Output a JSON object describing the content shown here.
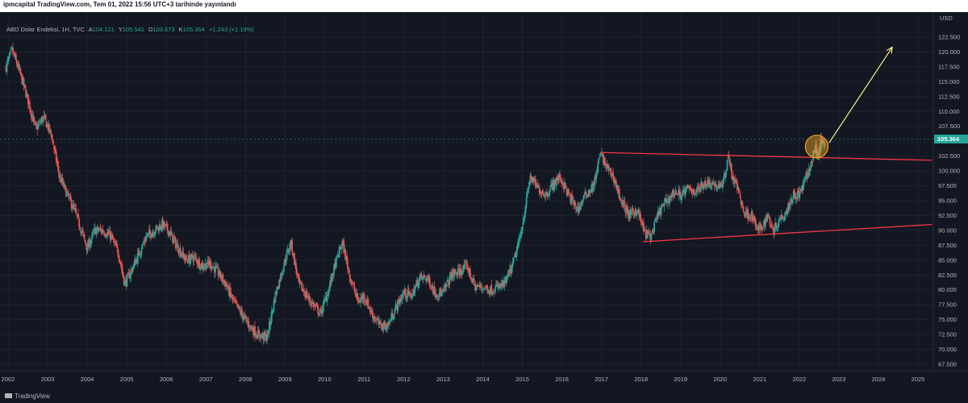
{
  "header": {
    "published_line": "ipmcapital TradingView.com, Tem 01, 2022 15:56 UTC+3 tarihinde yayınlandı"
  },
  "symbol": {
    "name": "ABD Dolar Endeksi, 1H, TVC",
    "o_label": "A",
    "open": "104.121",
    "h_label": "Y",
    "high": "105.541",
    "l_label": "D",
    "low": "103.673",
    "c_label": "K",
    "close": "105.364",
    "change": "+1.243 (+1.19%)"
  },
  "currency": "USD",
  "last_price_label": "105.364",
  "branding": "TradingView",
  "colors": {
    "background": "#131722",
    "up": "#26a69a",
    "down": "#ef5350",
    "trendline": "#f23645",
    "projection_arrow": "#f7f08a",
    "highlight_circle": "#f5a623",
    "last_price_badge": "#26a69a"
  },
  "chart_data": {
    "type": "candlestick",
    "x_axis_labels": [
      "2002",
      "2003",
      "2004",
      "2005",
      "2006",
      "2007",
      "2008",
      "2009",
      "2010",
      "2011",
      "2012",
      "2013",
      "2014",
      "2015",
      "2016",
      "2017",
      "2018",
      "2019",
      "2020",
      "2021",
      "2022",
      "2023",
      "2024",
      "2025"
    ],
    "y_axis_labels": [
      "122.500",
      "120.000",
      "117.500",
      "115.000",
      "112.500",
      "110.000",
      "107.500",
      "105.000",
      "102.500",
      "100.000",
      "97.500",
      "95.000",
      "92.500",
      "90.000",
      "87.500",
      "85.000",
      "82.500",
      "80.000",
      "77.500",
      "75.000",
      "72.500",
      "70.000",
      "67.500"
    ],
    "ylim": [
      66.5,
      124.5
    ],
    "xlim": [
      2001.95,
      2025.35
    ],
    "last_price": 105.364,
    "price_path": [
      [
        2001.95,
        117.5
      ],
      [
        2002.1,
        120.3
      ],
      [
        2002.3,
        116.5
      ],
      [
        2002.5,
        112
      ],
      [
        2002.7,
        107
      ],
      [
        2002.9,
        109
      ],
      [
        2003.1,
        106
      ],
      [
        2003.3,
        99
      ],
      [
        2003.5,
        96
      ],
      [
        2003.7,
        93
      ],
      [
        2003.9,
        89
      ],
      [
        2004.0,
        87
      ],
      [
        2004.2,
        90
      ],
      [
        2004.4,
        90
      ],
      [
        2004.6,
        89
      ],
      [
        2004.8,
        86
      ],
      [
        2004.95,
        81
      ],
      [
        2005.1,
        83
      ],
      [
        2005.3,
        86
      ],
      [
        2005.5,
        89
      ],
      [
        2005.7,
        90
      ],
      [
        2005.9,
        91
      ],
      [
        2006.05,
        90
      ],
      [
        2006.3,
        87
      ],
      [
        2006.5,
        85
      ],
      [
        2006.7,
        85.5
      ],
      [
        2006.9,
        84
      ],
      [
        2007.1,
        84.5
      ],
      [
        2007.3,
        83
      ],
      [
        2007.5,
        81
      ],
      [
        2007.7,
        78
      ],
      [
        2007.9,
        76
      ],
      [
        2008.1,
        74
      ],
      [
        2008.3,
        72.5
      ],
      [
        2008.55,
        72
      ],
      [
        2008.75,
        79
      ],
      [
        2009.0,
        85
      ],
      [
        2009.15,
        88
      ],
      [
        2009.35,
        81
      ],
      [
        2009.6,
        78.5
      ],
      [
        2009.9,
        76
      ],
      [
        2010.1,
        80
      ],
      [
        2010.3,
        85
      ],
      [
        2010.45,
        88
      ],
      [
        2010.65,
        82
      ],
      [
        2010.85,
        78
      ],
      [
        2011.0,
        79
      ],
      [
        2011.2,
        76
      ],
      [
        2011.4,
        74
      ],
      [
        2011.6,
        74
      ],
      [
        2011.8,
        77
      ],
      [
        2012.0,
        79.5
      ],
      [
        2012.2,
        79
      ],
      [
        2012.4,
        82
      ],
      [
        2012.6,
        82
      ],
      [
        2012.8,
        79.5
      ],
      [
        2013.0,
        79.5
      ],
      [
        2013.2,
        82.5
      ],
      [
        2013.4,
        83
      ],
      [
        2013.6,
        84
      ],
      [
        2013.8,
        80.5
      ],
      [
        2014.0,
        80.5
      ],
      [
        2014.2,
        80
      ],
      [
        2014.4,
        80.5
      ],
      [
        2014.55,
        81
      ],
      [
        2014.75,
        84
      ],
      [
        2014.95,
        89
      ],
      [
        2015.1,
        95
      ],
      [
        2015.2,
        99
      ],
      [
        2015.4,
        97
      ],
      [
        2015.6,
        96
      ],
      [
        2015.8,
        98
      ],
      [
        2015.95,
        99
      ],
      [
        2016.2,
        95.5
      ],
      [
        2016.4,
        93.5
      ],
      [
        2016.6,
        96
      ],
      [
        2016.8,
        97.5
      ],
      [
        2016.98,
        103
      ],
      [
        2017.1,
        101
      ],
      [
        2017.3,
        99
      ],
      [
        2017.5,
        95
      ],
      [
        2017.7,
        92.5
      ],
      [
        2017.9,
        93.5
      ],
      [
        2018.1,
        89.5
      ],
      [
        2018.25,
        89
      ],
      [
        2018.45,
        93
      ],
      [
        2018.65,
        95
      ],
      [
        2018.85,
        96.5
      ],
      [
        2019.0,
        96
      ],
      [
        2019.2,
        97
      ],
      [
        2019.4,
        96.5
      ],
      [
        2019.6,
        98
      ],
      [
        2019.8,
        98
      ],
      [
        2020.0,
        97
      ],
      [
        2020.15,
        100
      ],
      [
        2020.2,
        102.9
      ],
      [
        2020.3,
        99
      ],
      [
        2020.45,
        97
      ],
      [
        2020.6,
        93
      ],
      [
        2020.8,
        92.5
      ],
      [
        2020.95,
        90
      ],
      [
        2021.05,
        90.5
      ],
      [
        2021.2,
        92.5
      ],
      [
        2021.35,
        90
      ],
      [
        2021.5,
        92
      ],
      [
        2021.65,
        93
      ],
      [
        2021.85,
        96
      ],
      [
        2022.0,
        96
      ],
      [
        2022.15,
        98.5
      ],
      [
        2022.3,
        101
      ],
      [
        2022.4,
        104
      ],
      [
        2022.48,
        102.5
      ],
      [
        2022.55,
        105
      ],
      [
        2022.6,
        104.5
      ],
      [
        2022.65,
        105.364
      ]
    ],
    "trendlines": [
      {
        "from": [
          2016.98,
          103.1
        ],
        "to": [
          2025.35,
          101.8
        ]
      },
      {
        "from": [
          2018.05,
          88.1
        ],
        "to": [
          2025.35,
          91.0
        ]
      }
    ],
    "projection_arrow": {
      "from": [
        2022.75,
        104.7
      ],
      "to": [
        2024.35,
        120.8
      ]
    },
    "highlight_circle": {
      "center": [
        2022.44,
        104.1
      ],
      "radius_data_y": 1.9
    }
  }
}
